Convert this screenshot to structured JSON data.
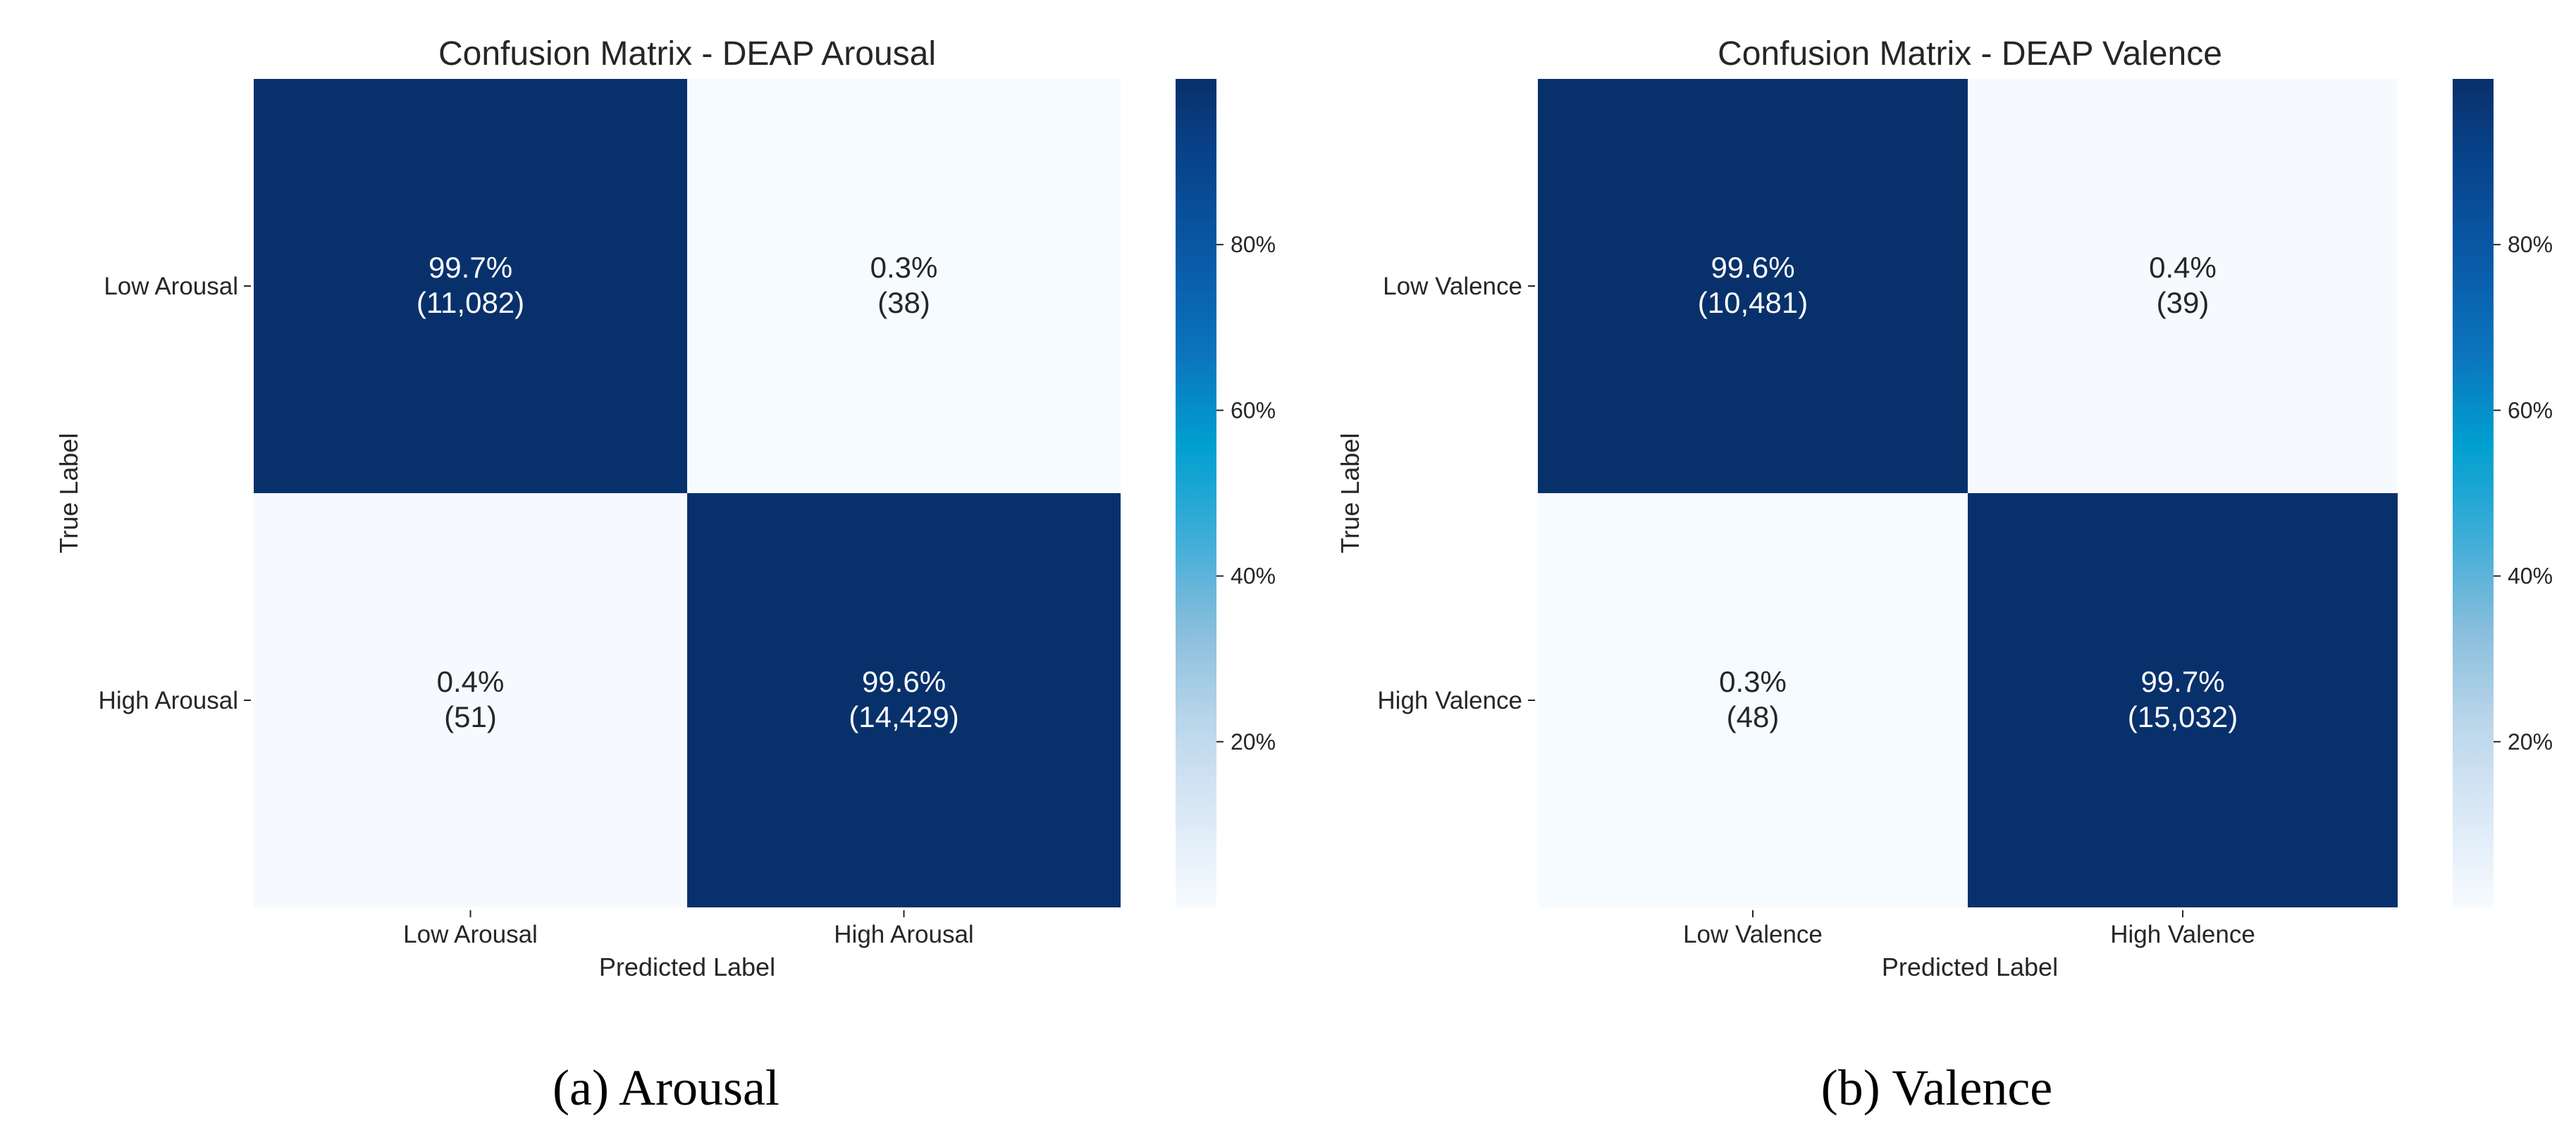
{
  "chart_data": [
    {
      "type": "heatmap",
      "title": "Confusion Matrix - DEAP Arousal",
      "xlabel": "Predicted Label",
      "ylabel": "True Label",
      "x_categories": [
        "Low Arousal",
        "High Arousal"
      ],
      "y_categories": [
        "Low Arousal",
        "High Arousal"
      ],
      "percent": [
        [
          99.7,
          0.3
        ],
        [
          0.4,
          99.6
        ]
      ],
      "cell_labels": [
        [
          "99.7%",
          "0.3%"
        ],
        [
          "0.4%",
          "99.6%"
        ]
      ],
      "count_labels": [
        [
          "(11,082)",
          "(38)"
        ],
        [
          "(51)",
          "(14,429)"
        ]
      ],
      "counts": [
        [
          11082,
          38
        ],
        [
          51,
          14429
        ]
      ],
      "colorbar": {
        "range": [
          0,
          100
        ],
        "ticks": [
          20,
          40,
          60,
          80
        ],
        "tick_labels": [
          "20%",
          "40%",
          "60%",
          "80%"
        ],
        "colormap": "Blues"
      },
      "caption": "(a) Arousal"
    },
    {
      "type": "heatmap",
      "title": "Confusion Matrix - DEAP Valence",
      "xlabel": "Predicted Label",
      "ylabel": "True Label",
      "x_categories": [
        "Low Valence",
        "High Valence"
      ],
      "y_categories": [
        "Low Valence",
        "High Valence"
      ],
      "percent": [
        [
          99.6,
          0.4
        ],
        [
          0.3,
          99.7
        ]
      ],
      "cell_labels": [
        [
          "99.6%",
          "0.4%"
        ],
        [
          "0.3%",
          "99.7%"
        ]
      ],
      "count_labels": [
        [
          "(10,481)",
          "(39)"
        ],
        [
          "(48)",
          "(15,032)"
        ]
      ],
      "counts": [
        [
          10481,
          39
        ],
        [
          48,
          15032
        ]
      ],
      "colorbar": {
        "range": [
          0,
          100
        ],
        "ticks": [
          20,
          40,
          60,
          80
        ],
        "tick_labels": [
          "20%",
          "40%",
          "60%",
          "80%"
        ],
        "colormap": "Blues"
      },
      "caption": "(b) Valence"
    }
  ],
  "colors": {
    "dark": "#08306b",
    "light": "#f7fbff",
    "text_dark": "#262626",
    "text_on_dark": "#ffffff",
    "blues_scale": [
      "#f7fbff",
      "#dbe9f6",
      "#bad6eb",
      "#89bedc",
      "#3fadd8",
      "#00a0d0",
      "#0b75bd",
      "#0a5ba8",
      "#08468f",
      "#08306b"
    ]
  }
}
